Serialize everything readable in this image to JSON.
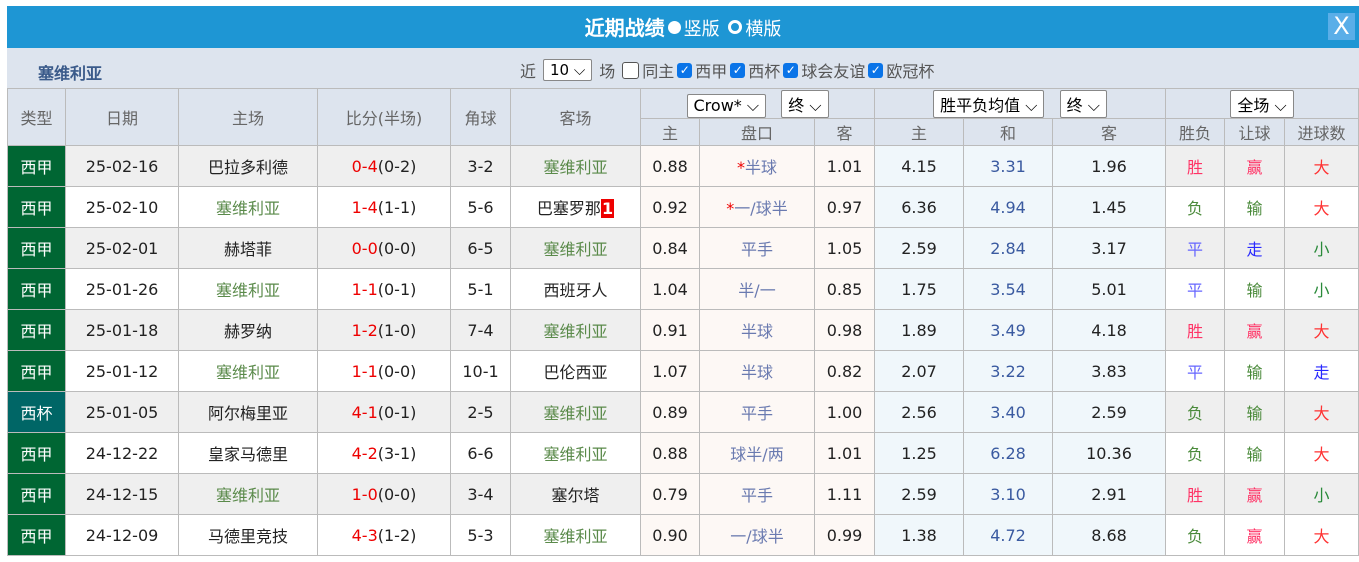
{
  "title": "近期战绩",
  "layout_options": [
    "竖版",
    "横版"
  ],
  "close_icon": "X",
  "team": "塞维利亚",
  "filters": {
    "near": "近",
    "count": "10",
    "matches": "场",
    "same_home": "同主",
    "checks": [
      "西甲",
      "西杯",
      "球会友谊",
      "欧冠杯"
    ]
  },
  "headers": {
    "type": "类型",
    "date": "日期",
    "home": "主场",
    "score": "比分(半场)",
    "corner": "角球",
    "away": "客场",
    "asian_company": "Crow*",
    "asian_time": "终",
    "euro_company": "胜平负均值",
    "euro_time": "终",
    "period": "全场",
    "sub": [
      "主",
      "盘口",
      "客",
      "主",
      "和",
      "客",
      "胜负",
      "让球",
      "进球数"
    ]
  },
  "colors": {
    "title_bar": "#1e96d4",
    "league": "#006633",
    "cup": "#006666",
    "win": "#ff3366",
    "draw": "#6666ff",
    "lose": "#4a8a3a"
  },
  "rows": [
    {
      "type": "西甲",
      "date": "25-02-16",
      "home": "巴拉多利德",
      "score": "0-4",
      "half": "(0-2)",
      "corner": "3-2",
      "away": "塞维利亚",
      "ah": "0.88",
      "hcap_star": "*",
      "hcap": "半球",
      "aa": "1.01",
      "eh": "4.15",
      "ed": "3.31",
      "ea": "1.96",
      "res": "胜",
      "ah_res": "赢",
      "ou": "大"
    },
    {
      "type": "西甲",
      "date": "25-02-10",
      "home": "塞维利亚",
      "score": "1-4",
      "half": "(1-1)",
      "corner": "5-6",
      "away": "巴塞罗那",
      "away_flag": "1",
      "ah": "0.92",
      "hcap_star": "*",
      "hcap": "一/球半",
      "aa": "0.97",
      "eh": "6.36",
      "ed": "4.94",
      "ea": "1.45",
      "res": "负",
      "ah_res": "输",
      "ou": "大"
    },
    {
      "type": "西甲",
      "date": "25-02-01",
      "home": "赫塔菲",
      "score": "0-0",
      "half": "(0-0)",
      "corner": "6-5",
      "away": "塞维利亚",
      "ah": "0.84",
      "hcap": "平手",
      "aa": "1.05",
      "eh": "2.59",
      "ed": "2.84",
      "ea": "3.17",
      "res": "平",
      "ah_res": "走",
      "ou": "小"
    },
    {
      "type": "西甲",
      "date": "25-01-26",
      "home": "塞维利亚",
      "score": "1-1",
      "half": "(0-1)",
      "corner": "5-1",
      "away": "西班牙人",
      "ah": "1.04",
      "hcap": "半/一",
      "aa": "0.85",
      "eh": "1.75",
      "ed": "3.54",
      "ea": "5.01",
      "res": "平",
      "ah_res": "输",
      "ou": "小"
    },
    {
      "type": "西甲",
      "date": "25-01-18",
      "home": "赫罗纳",
      "score": "1-2",
      "half": "(1-0)",
      "corner": "7-4",
      "away": "塞维利亚",
      "ah": "0.91",
      "hcap": "半球",
      "aa": "0.98",
      "eh": "1.89",
      "ed": "3.49",
      "ea": "4.18",
      "res": "胜",
      "ah_res": "赢",
      "ou": "大"
    },
    {
      "type": "西甲",
      "date": "25-01-12",
      "home": "塞维利亚",
      "score": "1-1",
      "half": "(0-0)",
      "corner": "10-1",
      "away": "巴伦西亚",
      "ah": "1.07",
      "hcap": "半球",
      "aa": "0.82",
      "eh": "2.07",
      "ed": "3.22",
      "ea": "3.83",
      "res": "平",
      "ah_res": "输",
      "ou": "走"
    },
    {
      "type": "西杯",
      "date": "25-01-05",
      "home": "阿尔梅里亚",
      "score": "4-1",
      "half": "(0-1)",
      "corner": "2-5",
      "away": "塞维利亚",
      "ah": "0.89",
      "hcap": "平手",
      "aa": "1.00",
      "eh": "2.56",
      "ed": "3.40",
      "ea": "2.59",
      "res": "负",
      "ah_res": "输",
      "ou": "大"
    },
    {
      "type": "西甲",
      "date": "24-12-22",
      "home": "皇家马德里",
      "score": "4-2",
      "half": "(3-1)",
      "corner": "6-6",
      "away": "塞维利亚",
      "ah": "0.88",
      "hcap": "球半/两",
      "aa": "1.01",
      "eh": "1.25",
      "ed": "6.28",
      "ea": "10.36",
      "res": "负",
      "ah_res": "输",
      "ou": "大"
    },
    {
      "type": "西甲",
      "date": "24-12-15",
      "home": "塞维利亚",
      "score": "1-0",
      "half": "(0-0)",
      "corner": "3-4",
      "away": "塞尔塔",
      "ah": "0.79",
      "hcap": "平手",
      "aa": "1.11",
      "eh": "2.59",
      "ed": "3.10",
      "ea": "2.91",
      "res": "胜",
      "ah_res": "赢",
      "ou": "小"
    },
    {
      "type": "西甲",
      "date": "24-12-09",
      "home": "马德里竞技",
      "score": "4-3",
      "half": "(1-2)",
      "corner": "5-3",
      "away": "塞维利亚",
      "ah": "0.90",
      "hcap": "一/球半",
      "aa": "0.99",
      "eh": "1.38",
      "ed": "4.72",
      "ea": "8.68",
      "res": "负",
      "ah_res": "赢",
      "ou": "大"
    }
  ]
}
